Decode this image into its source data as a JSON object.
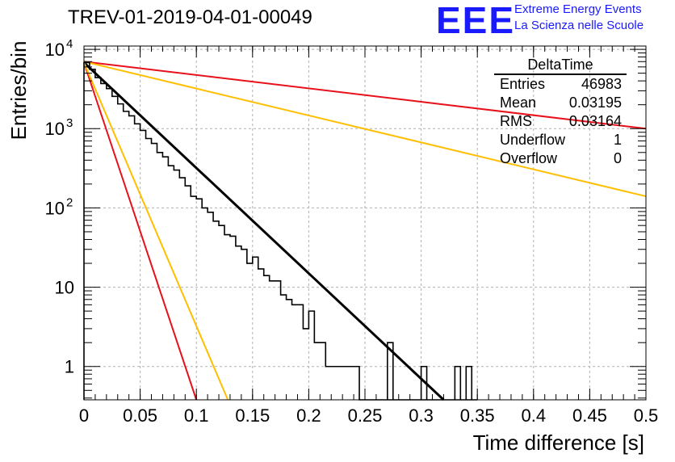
{
  "header": {
    "title": "TREV-01-2019-04-01-00049",
    "logo": "EEE",
    "logo_line1": "Extreme Energy Events",
    "logo_line2": "La Scienza nelle Scuole"
  },
  "stats": {
    "name": "DeltaTime",
    "rows": [
      {
        "label": "Entries",
        "value": "46983"
      },
      {
        "label": "Mean",
        "value": "0.03195"
      },
      {
        "label": "RMS",
        "value": "0.03164"
      },
      {
        "label": "Underflow",
        "value": "1"
      },
      {
        "label": "Overflow",
        "value": "0"
      }
    ]
  },
  "colors": {
    "histogram": "#000000",
    "fit": "#000000",
    "red_curve": "#e8101a",
    "yellow_curve": "#ffbf00",
    "grid": "#b0b0b0"
  },
  "chart_data": {
    "type": "line",
    "xlabel": "Time difference [s]",
    "ylabel": "Entries/bin",
    "xlim": [
      0,
      0.5
    ],
    "ylim": [
      0.38,
      11000
    ],
    "log_y": true,
    "grid": true,
    "x_ticks": [
      "0",
      "0.05",
      "0.1",
      "0.15",
      "0.2",
      "0.25",
      "0.3",
      "0.35",
      "0.4",
      "0.45",
      "0.5"
    ],
    "y_ticks": [
      {
        "value": 1,
        "label": "1"
      },
      {
        "value": 10,
        "label": "10"
      },
      {
        "value": 100,
        "label": "10",
        "exponent": "2"
      },
      {
        "value": 1000,
        "label": "10",
        "exponent": "3"
      },
      {
        "value": 10000,
        "label": "10",
        "exponent": "4"
      }
    ],
    "histogram": {
      "bin_width": 0.005,
      "counts": [
        6800,
        5600,
        4400,
        3700,
        3200,
        2550,
        2050,
        1650,
        1450,
        1150,
        950,
        750,
        650,
        500,
        440,
        340,
        300,
        240,
        190,
        140,
        130,
        100,
        88,
        68,
        60,
        46,
        44,
        33,
        30,
        20,
        24,
        17,
        14,
        12,
        12,
        8,
        7,
        6,
        6,
        3,
        5,
        2,
        2,
        1,
        1,
        1,
        1,
        1,
        1,
        0,
        0,
        0,
        0,
        0,
        0,
        0,
        0,
        0,
        0,
        0,
        0,
        0,
        0,
        0,
        0,
        0,
        0,
        0,
        0,
        0
      ]
    },
    "spikes": [
      {
        "x": 0.27,
        "count": 2
      },
      {
        "x": 0.3,
        "count": 1
      },
      {
        "x": 0.33,
        "count": 1
      },
      {
        "x": 0.34,
        "count": 1
      }
    ],
    "series": [
      {
        "x": [
          0,
          0.32
        ],
        "y": [
          6800,
          0.38
        ]
      },
      {
        "x": [
          0,
          0.1
        ],
        "y": [
          6800,
          0.38
        ]
      },
      {
        "x": [
          0,
          0.128
        ],
        "y": [
          6800,
          0.38
        ]
      },
      {
        "x": [
          0,
          0.5
        ],
        "y": [
          7000,
          1000
        ]
      },
      {
        "x": [
          0,
          0.5
        ],
        "y": [
          7000,
          140
        ]
      }
    ]
  }
}
